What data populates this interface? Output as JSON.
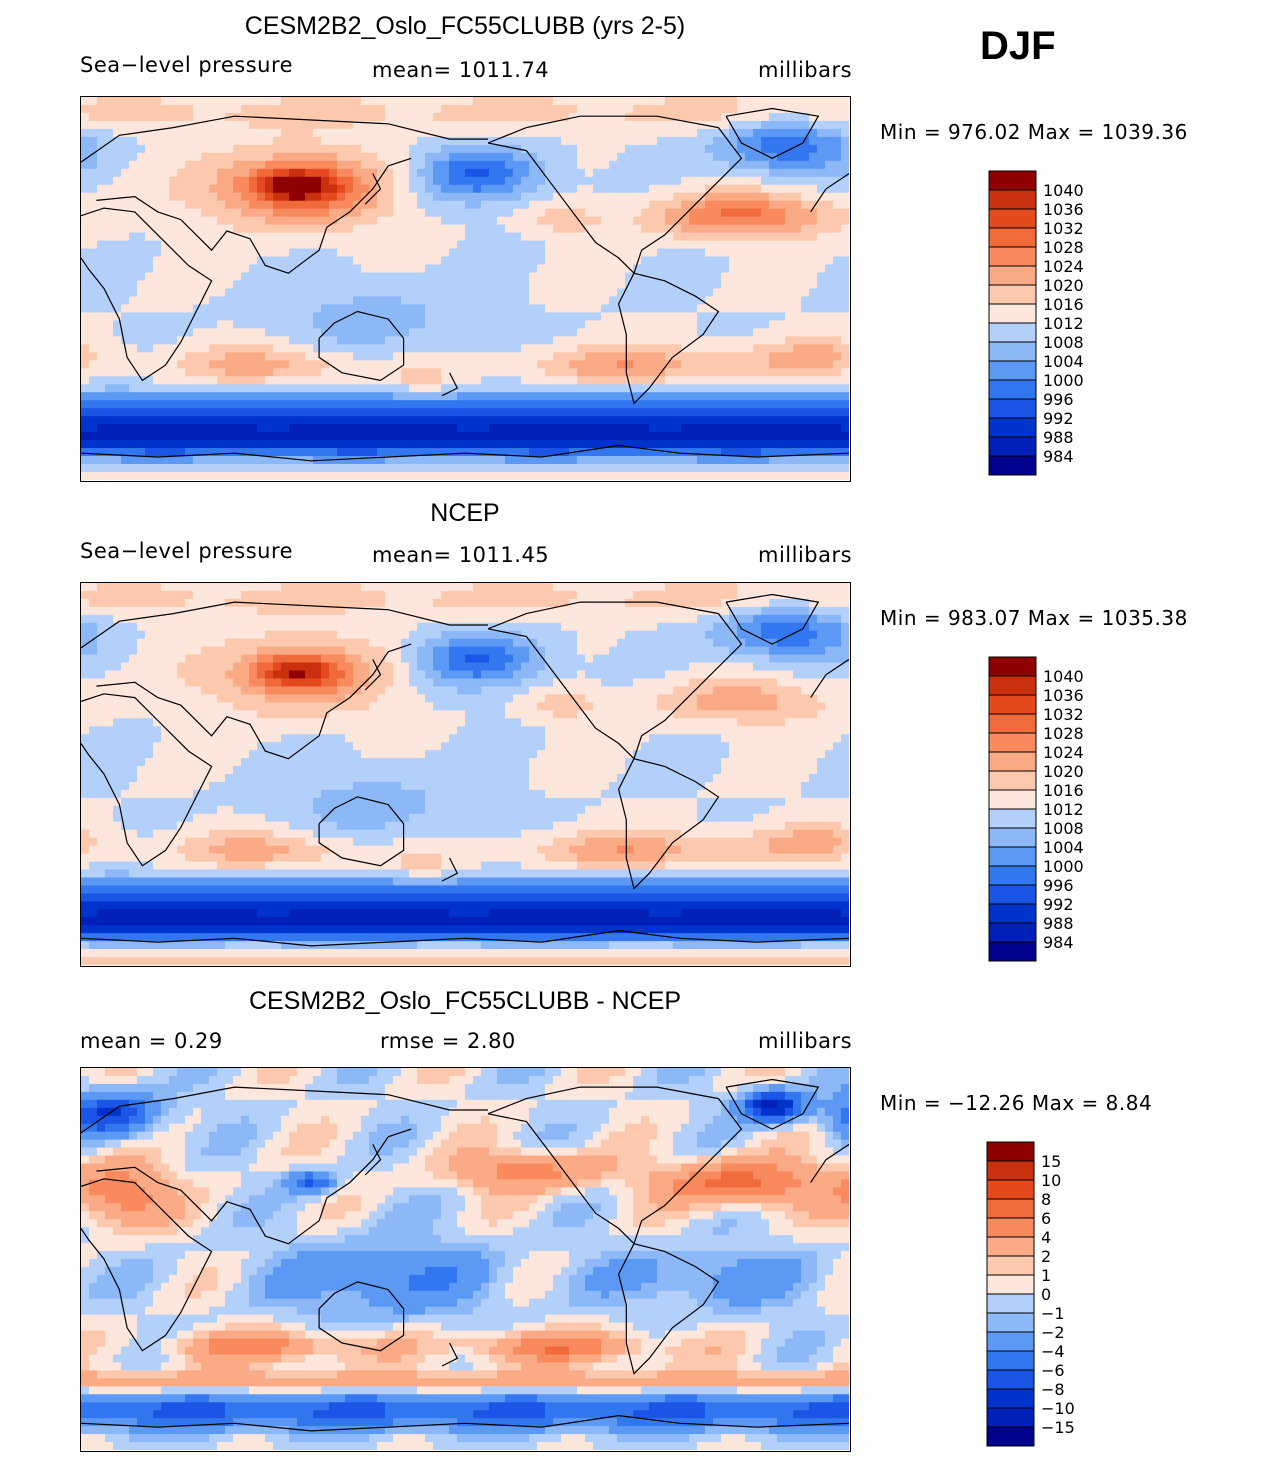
{
  "season": "DJF",
  "colors": {
    "levels_palette": [
      "#00008f",
      "#0020b8",
      "#0033cc",
      "#1a55e6",
      "#3377f0",
      "#5c99f5",
      "#8cb8f8",
      "#b3d0fb",
      "#d9e8fd",
      "#fde6dc",
      "#fcc9ae",
      "#fbaa86",
      "#f88a5e",
      "#f06a3c",
      "#e54a1e",
      "#c8300e",
      "#8f0000"
    ],
    "coast": "#000000"
  },
  "panels": [
    {
      "title": "CESM2B2_Oslo_FC55CLUBB (yrs 2-5)",
      "left": "Sea−level  pressure",
      "center": "mean=  1011.74",
      "right": "millibars",
      "minmax": "Min  =  976.02  Max  =  1039.36",
      "field": "model"
    },
    {
      "title": "NCEP",
      "left": "Sea−level  pressure",
      "center": "mean=  1011.45",
      "right": "millibars",
      "minmax": "Min  =  983.07  Max  =  1035.38",
      "field": "obs"
    },
    {
      "title": "CESM2B2_Oslo_FC55CLUBB - NCEP",
      "left": "mean  =      0.29",
      "center": "rmse  =      2.80",
      "right": "millibars",
      "minmax": "Min  =  −12.26  Max  =      8.84",
      "field": "diff"
    }
  ],
  "chart_data": [
    {
      "type": "heatmap",
      "title": "CESM2B2_Oslo_FC55CLUBB (yrs 2-5)",
      "variable": "Sea-level pressure",
      "units": "millibars",
      "mean": 1011.74,
      "min": 976.02,
      "max": 1039.36,
      "contour_levels": [
        984,
        988,
        992,
        996,
        1000,
        1004,
        1008,
        1012,
        1016,
        1020,
        1024,
        1028,
        1032,
        1036,
        1040
      ],
      "colorbar_labels": [
        "1040",
        "1036",
        "1032",
        "1028",
        "1024",
        "1020",
        "1016",
        "1012",
        "1008",
        "1004",
        "1000",
        "996",
        "992",
        "988",
        "984"
      ]
    },
    {
      "type": "heatmap",
      "title": "NCEP",
      "variable": "Sea-level pressure",
      "units": "millibars",
      "mean": 1011.45,
      "min": 983.07,
      "max": 1035.38,
      "contour_levels": [
        984,
        988,
        992,
        996,
        1000,
        1004,
        1008,
        1012,
        1016,
        1020,
        1024,
        1028,
        1032,
        1036,
        1040
      ],
      "colorbar_labels": [
        "1040",
        "1036",
        "1032",
        "1028",
        "1024",
        "1020",
        "1016",
        "1012",
        "1008",
        "1004",
        "1000",
        "996",
        "992",
        "988",
        "984"
      ]
    },
    {
      "type": "heatmap",
      "title": "CESM2B2_Oslo_FC55CLUBB - NCEP",
      "units": "millibars",
      "mean": 0.29,
      "rmse": 2.8,
      "min": -12.26,
      "max": 8.84,
      "contour_levels": [
        -15,
        -10,
        -8,
        -6,
        -4,
        -2,
        -1,
        0,
        1,
        2,
        4,
        6,
        8,
        10,
        15
      ],
      "colorbar_labels": [
        "15",
        "10",
        "8",
        "6",
        "4",
        "2",
        "1",
        "0",
        "−1",
        "−2",
        "−4",
        "−6",
        "−8",
        "−10",
        "−15"
      ]
    }
  ]
}
